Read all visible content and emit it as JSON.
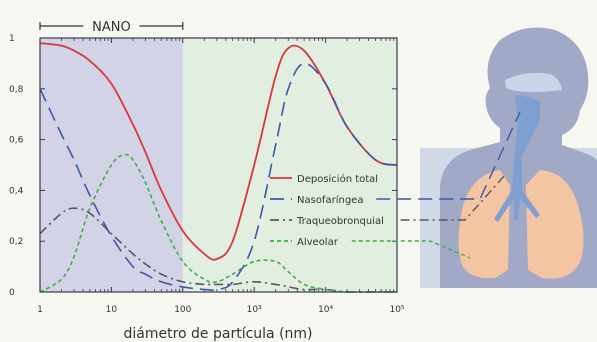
{
  "chart_data": {
    "type": "line",
    "title": "",
    "xlabel": "diámetro de partícula (nm)",
    "ylabel": "",
    "x_scale": "log",
    "xlim": [
      1,
      100000
    ],
    "ylim": [
      0,
      1
    ],
    "x_ticks": [
      {
        "value": 1,
        "label": "1"
      },
      {
        "value": 10,
        "label": "10"
      },
      {
        "value": 100,
        "label": "100"
      },
      {
        "value": 1000,
        "label": "10³"
      },
      {
        "value": 10000,
        "label": "10⁴"
      },
      {
        "value": 100000,
        "label": "10⁵"
      }
    ],
    "y_ticks": [
      {
        "value": 0,
        "label": "0"
      },
      {
        "value": 0.2,
        "label": "0,2"
      },
      {
        "value": 0.4,
        "label": "0,4"
      },
      {
        "value": 0.6,
        "label": "0,6"
      },
      {
        "value": 0.8,
        "label": "0,8"
      },
      {
        "value": 1,
        "label": "1"
      }
    ],
    "region": {
      "label": "NANO",
      "x_range": [
        1,
        100
      ]
    },
    "legend_position": "right",
    "series": [
      {
        "name": "Deposición total",
        "color": "#d9383a",
        "dash": "solid",
        "x": [
          1,
          2,
          3,
          5,
          10,
          20,
          30,
          50,
          100,
          200,
          300,
          500,
          1000,
          2000,
          3000,
          5000,
          10000,
          20000,
          50000,
          100000
        ],
        "y": [
          0.98,
          0.97,
          0.95,
          0.91,
          0.82,
          0.66,
          0.55,
          0.4,
          0.24,
          0.15,
          0.13,
          0.2,
          0.5,
          0.85,
          0.96,
          0.95,
          0.82,
          0.65,
          0.52,
          0.5
        ]
      },
      {
        "name": "Nasofaríngea",
        "color": "#3e57a8",
        "dash": "long-dash",
        "x": [
          1,
          2,
          3,
          5,
          10,
          20,
          30,
          50,
          100,
          200,
          300,
          500,
          1000,
          2000,
          3000,
          5000,
          10000,
          20000,
          50000,
          100000
        ],
        "y": [
          0.8,
          0.62,
          0.52,
          0.38,
          0.22,
          0.1,
          0.07,
          0.04,
          0.02,
          0.01,
          0.01,
          0.04,
          0.2,
          0.58,
          0.8,
          0.9,
          0.82,
          0.65,
          0.52,
          0.5
        ]
      },
      {
        "name": "Traqueobronquial",
        "color": "#555566",
        "dash": "dash-dot",
        "x": [
          1,
          2,
          3,
          5,
          10,
          20,
          30,
          50,
          100,
          200,
          300,
          500,
          1000,
          2000,
          3000,
          5000,
          10000,
          20000,
          50000,
          100000
        ],
        "y": [
          0.23,
          0.31,
          0.33,
          0.31,
          0.23,
          0.15,
          0.11,
          0.07,
          0.04,
          0.03,
          0.03,
          0.03,
          0.04,
          0.03,
          0.02,
          0.01,
          0.01,
          0.0,
          0.0,
          0.0
        ]
      },
      {
        "name": "Alveolar",
        "color": "#3fae49",
        "dash": "short-dash",
        "x": [
          1,
          2,
          3,
          5,
          10,
          15,
          20,
          30,
          50,
          100,
          200,
          300,
          500,
          1000,
          2000,
          3000,
          5000,
          10000,
          20000,
          50000,
          100000
        ],
        "y": [
          0.0,
          0.05,
          0.14,
          0.33,
          0.5,
          0.54,
          0.52,
          0.43,
          0.28,
          0.12,
          0.05,
          0.04,
          0.07,
          0.12,
          0.12,
          0.08,
          0.03,
          0.01,
          0.0,
          0.0,
          0.0
        ]
      }
    ]
  },
  "illustration": {
    "name": "human respiratory system",
    "colors": {
      "body": "#a1a9c6",
      "lungs": "#f3c5a2",
      "airway": "#7f9fd0",
      "chest_panel": "#d1d9e7"
    }
  }
}
